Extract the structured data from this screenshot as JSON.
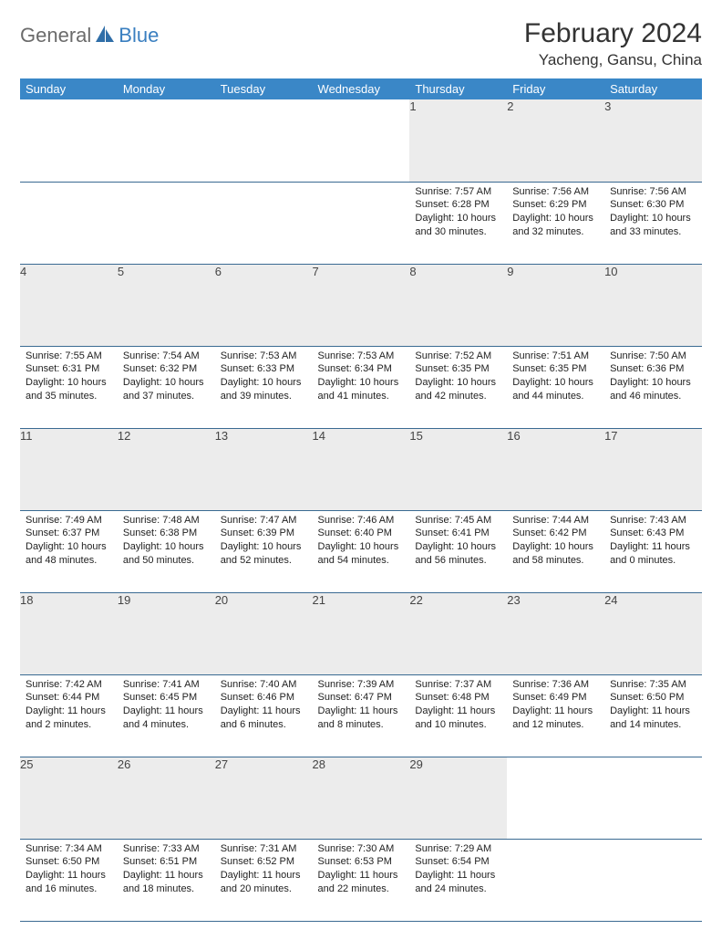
{
  "logo": {
    "part1": "General",
    "part2": "Blue"
  },
  "title": "February 2024",
  "location": "Yacheng, Gansu, China",
  "header_color": "#3a87c7",
  "daynum_bg": "#ececec",
  "border_color": "#3a6a92",
  "days_of_week": [
    "Sunday",
    "Monday",
    "Tuesday",
    "Wednesday",
    "Thursday",
    "Friday",
    "Saturday"
  ],
  "weeks": [
    [
      null,
      null,
      null,
      null,
      {
        "n": "1",
        "sr": "Sunrise: 7:57 AM",
        "ss": "Sunset: 6:28 PM",
        "dl1": "Daylight: 10 hours",
        "dl2": "and 30 minutes."
      },
      {
        "n": "2",
        "sr": "Sunrise: 7:56 AM",
        "ss": "Sunset: 6:29 PM",
        "dl1": "Daylight: 10 hours",
        "dl2": "and 32 minutes."
      },
      {
        "n": "3",
        "sr": "Sunrise: 7:56 AM",
        "ss": "Sunset: 6:30 PM",
        "dl1": "Daylight: 10 hours",
        "dl2": "and 33 minutes."
      }
    ],
    [
      {
        "n": "4",
        "sr": "Sunrise: 7:55 AM",
        "ss": "Sunset: 6:31 PM",
        "dl1": "Daylight: 10 hours",
        "dl2": "and 35 minutes."
      },
      {
        "n": "5",
        "sr": "Sunrise: 7:54 AM",
        "ss": "Sunset: 6:32 PM",
        "dl1": "Daylight: 10 hours",
        "dl2": "and 37 minutes."
      },
      {
        "n": "6",
        "sr": "Sunrise: 7:53 AM",
        "ss": "Sunset: 6:33 PM",
        "dl1": "Daylight: 10 hours",
        "dl2": "and 39 minutes."
      },
      {
        "n": "7",
        "sr": "Sunrise: 7:53 AM",
        "ss": "Sunset: 6:34 PM",
        "dl1": "Daylight: 10 hours",
        "dl2": "and 41 minutes."
      },
      {
        "n": "8",
        "sr": "Sunrise: 7:52 AM",
        "ss": "Sunset: 6:35 PM",
        "dl1": "Daylight: 10 hours",
        "dl2": "and 42 minutes."
      },
      {
        "n": "9",
        "sr": "Sunrise: 7:51 AM",
        "ss": "Sunset: 6:35 PM",
        "dl1": "Daylight: 10 hours",
        "dl2": "and 44 minutes."
      },
      {
        "n": "10",
        "sr": "Sunrise: 7:50 AM",
        "ss": "Sunset: 6:36 PM",
        "dl1": "Daylight: 10 hours",
        "dl2": "and 46 minutes."
      }
    ],
    [
      {
        "n": "11",
        "sr": "Sunrise: 7:49 AM",
        "ss": "Sunset: 6:37 PM",
        "dl1": "Daylight: 10 hours",
        "dl2": "and 48 minutes."
      },
      {
        "n": "12",
        "sr": "Sunrise: 7:48 AM",
        "ss": "Sunset: 6:38 PM",
        "dl1": "Daylight: 10 hours",
        "dl2": "and 50 minutes."
      },
      {
        "n": "13",
        "sr": "Sunrise: 7:47 AM",
        "ss": "Sunset: 6:39 PM",
        "dl1": "Daylight: 10 hours",
        "dl2": "and 52 minutes."
      },
      {
        "n": "14",
        "sr": "Sunrise: 7:46 AM",
        "ss": "Sunset: 6:40 PM",
        "dl1": "Daylight: 10 hours",
        "dl2": "and 54 minutes."
      },
      {
        "n": "15",
        "sr": "Sunrise: 7:45 AM",
        "ss": "Sunset: 6:41 PM",
        "dl1": "Daylight: 10 hours",
        "dl2": "and 56 minutes."
      },
      {
        "n": "16",
        "sr": "Sunrise: 7:44 AM",
        "ss": "Sunset: 6:42 PM",
        "dl1": "Daylight: 10 hours",
        "dl2": "and 58 minutes."
      },
      {
        "n": "17",
        "sr": "Sunrise: 7:43 AM",
        "ss": "Sunset: 6:43 PM",
        "dl1": "Daylight: 11 hours",
        "dl2": "and 0 minutes."
      }
    ],
    [
      {
        "n": "18",
        "sr": "Sunrise: 7:42 AM",
        "ss": "Sunset: 6:44 PM",
        "dl1": "Daylight: 11 hours",
        "dl2": "and 2 minutes."
      },
      {
        "n": "19",
        "sr": "Sunrise: 7:41 AM",
        "ss": "Sunset: 6:45 PM",
        "dl1": "Daylight: 11 hours",
        "dl2": "and 4 minutes."
      },
      {
        "n": "20",
        "sr": "Sunrise: 7:40 AM",
        "ss": "Sunset: 6:46 PM",
        "dl1": "Daylight: 11 hours",
        "dl2": "and 6 minutes."
      },
      {
        "n": "21",
        "sr": "Sunrise: 7:39 AM",
        "ss": "Sunset: 6:47 PM",
        "dl1": "Daylight: 11 hours",
        "dl2": "and 8 minutes."
      },
      {
        "n": "22",
        "sr": "Sunrise: 7:37 AM",
        "ss": "Sunset: 6:48 PM",
        "dl1": "Daylight: 11 hours",
        "dl2": "and 10 minutes."
      },
      {
        "n": "23",
        "sr": "Sunrise: 7:36 AM",
        "ss": "Sunset: 6:49 PM",
        "dl1": "Daylight: 11 hours",
        "dl2": "and 12 minutes."
      },
      {
        "n": "24",
        "sr": "Sunrise: 7:35 AM",
        "ss": "Sunset: 6:50 PM",
        "dl1": "Daylight: 11 hours",
        "dl2": "and 14 minutes."
      }
    ],
    [
      {
        "n": "25",
        "sr": "Sunrise: 7:34 AM",
        "ss": "Sunset: 6:50 PM",
        "dl1": "Daylight: 11 hours",
        "dl2": "and 16 minutes."
      },
      {
        "n": "26",
        "sr": "Sunrise: 7:33 AM",
        "ss": "Sunset: 6:51 PM",
        "dl1": "Daylight: 11 hours",
        "dl2": "and 18 minutes."
      },
      {
        "n": "27",
        "sr": "Sunrise: 7:31 AM",
        "ss": "Sunset: 6:52 PM",
        "dl1": "Daylight: 11 hours",
        "dl2": "and 20 minutes."
      },
      {
        "n": "28",
        "sr": "Sunrise: 7:30 AM",
        "ss": "Sunset: 6:53 PM",
        "dl1": "Daylight: 11 hours",
        "dl2": "and 22 minutes."
      },
      {
        "n": "29",
        "sr": "Sunrise: 7:29 AM",
        "ss": "Sunset: 6:54 PM",
        "dl1": "Daylight: 11 hours",
        "dl2": "and 24 minutes."
      },
      null,
      null
    ]
  ]
}
